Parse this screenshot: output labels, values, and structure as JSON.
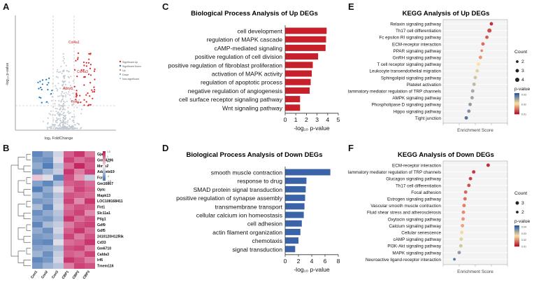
{
  "panel_labels": {
    "a": "A",
    "b": "B",
    "c": "C",
    "d": "D",
    "e": "E",
    "f": "F"
  },
  "chart_data": [
    {
      "id": "volcano",
      "type": "scatter",
      "title": "",
      "xlabel": "log₂ FoldChange",
      "ylabel": "-log₁₀ p-value",
      "legend": [
        "Significant Up",
        "Significant Down",
        "Up",
        "Down",
        "Non-significant"
      ],
      "labeled_genes": [
        "Col4a1",
        "Col4a3",
        "Adcy8",
        "Fcrls"
      ],
      "colors": {
        "up": "#d62728",
        "down": "#1f77b4",
        "ns": "#c0c8d0"
      }
    },
    {
      "id": "heatmap",
      "type": "heatmap",
      "columns": [
        "Con1",
        "Con2",
        "Con3",
        "CBP1",
        "CBP2",
        "CBP3"
      ],
      "rows": [
        "Gja8",
        "Gm14296",
        "Mmfa7",
        "Adamts19",
        "Fcrls",
        "Gm16867",
        "Optc",
        "Mapk13",
        "LOC108168411",
        "Flrt1",
        "Slc11a1",
        "Ptlg1",
        "Gdf9",
        "Gdf5",
        "2410120H12Rik",
        "Cd33",
        "Gm6710",
        "Calda3",
        "Irf6",
        "Tmem116"
      ],
      "values": [
        [
          -1.2,
          -0.9,
          -0.3,
          1.0,
          1.3,
          0.8
        ],
        [
          -1.0,
          -1.1,
          -0.2,
          1.2,
          0.9,
          1.1
        ],
        [
          -0.8,
          -1.3,
          -0.5,
          0.9,
          1.4,
          1.0
        ],
        [
          -1.1,
          -0.7,
          -0.4,
          1.3,
          0.8,
          1.2
        ],
        [
          0.3,
          -0.2,
          -1.2,
          1.1,
          0.6,
          -0.4
        ],
        [
          -0.9,
          -1.2,
          -0.6,
          1.0,
          1.1,
          0.9
        ],
        [
          -1.3,
          -0.8,
          -0.2,
          0.8,
          1.2,
          1.0
        ],
        [
          -0.7,
          -1.0,
          -0.5,
          1.1,
          1.0,
          0.9
        ],
        [
          -1.0,
          -0.9,
          -0.4,
          1.2,
          0.7,
          1.3
        ],
        [
          -0.6,
          -1.2,
          -0.3,
          0.9,
          1.1,
          1.0
        ],
        [
          -1.1,
          -0.8,
          -0.5,
          1.0,
          1.2,
          0.7
        ],
        [
          -0.9,
          -1.0,
          -0.6,
          1.3,
          0.9,
          1.1
        ],
        [
          -1.2,
          -0.6,
          -0.4,
          0.8,
          1.1,
          1.2
        ],
        [
          -0.8,
          -1.1,
          -0.3,
          1.0,
          1.3,
          0.9
        ],
        [
          -1.0,
          -0.9,
          -0.5,
          1.2,
          0.8,
          1.1
        ],
        [
          -1.1,
          -1.2,
          -0.2,
          0.9,
          1.0,
          1.3
        ],
        [
          -0.9,
          -0.8,
          -0.6,
          1.1,
          1.2,
          0.8
        ],
        [
          -0.7,
          -1.1,
          -0.4,
          1.0,
          0.9,
          1.2
        ],
        [
          -1.2,
          -1.0,
          -0.3,
          1.3,
          1.1,
          0.8
        ],
        [
          -1.0,
          -0.7,
          -0.5,
          0.8,
          1.2,
          1.1
        ]
      ],
      "scale_ticks": [
        "1.5",
        "1",
        "0.5",
        "0",
        "-0.5",
        "-1",
        "-1.5"
      ]
    },
    {
      "id": "bp_up",
      "type": "bar",
      "orientation": "horizontal",
      "title": "Biological Process Analysis of Up DEGs",
      "categories": [
        "cell development",
        "regulation of MAPK cascade",
        "cAMP-mediated signaling",
        "positive regulation of cell division",
        "positive regulation of fibroblast proliferation",
        "activation of MAPK activity",
        "regulation of apoptotic process",
        "negative regulation of angiogenesis",
        "cell surface receptor signaling pathway",
        "Wnt signaling pathway"
      ],
      "values": [
        3.9,
        3.85,
        3.8,
        3.1,
        2.6,
        2.5,
        2.4,
        2.3,
        1.4,
        1.4
      ],
      "xlim": [
        0,
        5
      ],
      "ticks": [
        0,
        1,
        2,
        3,
        4,
        5
      ],
      "xlabel": "-log₁₀ p-value",
      "color": "#c8202a"
    },
    {
      "id": "bp_down",
      "type": "bar",
      "orientation": "horizontal",
      "title": "Biological Process Analysis of Down DEGs",
      "categories": [
        "smooth muscle contraction",
        "response to drug",
        "SMAD protein signal transduction",
        "positive regulation of synapse assembly",
        "transmembrane transport",
        "cellular calcium ion homeostasis",
        "cell adhesion",
        "actin filament organization",
        "chemotaxis",
        "signal transduction"
      ],
      "values": [
        6.8,
        3.2,
        3.1,
        3.0,
        2.9,
        2.8,
        2.5,
        2.3,
        2.0,
        1.5
      ],
      "xlim": [
        0,
        8
      ],
      "ticks": [
        0,
        2,
        4,
        6,
        8
      ],
      "xlabel": "-log₁₀ p-value",
      "color": "#3a63a8"
    },
    {
      "id": "kegg_up",
      "type": "scatter",
      "title": "KEGG Analysis of Up DEGs",
      "categories": [
        "Relaxin signaling pathway",
        "Th17 cell differentiation",
        "Fc epsilon RI signaling pathway",
        "ECM-receptor interaction",
        "PPAR signaling pathway",
        "GnRH signaling pathway",
        "T cell receptor signaling pathway",
        "Leukocyte transendothelial migration",
        "Sphingolipid signaling pathway",
        "Platelet activation",
        "Inflammatory mediator regulation of TRP channels",
        "AMPK signaling pathway",
        "Phospholipase D signaling pathway",
        "Hippo signaling pathway",
        "Tight junction"
      ],
      "values": [
        7.5,
        7.2,
        6.8,
        6.2,
        6.0,
        5.8,
        5.5,
        5.3,
        5.0,
        4.8,
        4.6,
        4.5,
        4.2,
        4.0,
        3.6
      ],
      "pvalues": [
        0.005,
        0.01,
        0.012,
        0.015,
        0.02,
        0.022,
        0.025,
        0.028,
        0.03,
        0.032,
        0.035,
        0.036,
        0.038,
        0.04,
        0.045
      ],
      "counts": [
        3,
        4,
        3,
        3,
        2,
        3,
        3,
        3,
        3,
        3,
        3,
        3,
        3,
        3,
        3
      ],
      "xlim": [
        0,
        10
      ],
      "xlabel": "Enrichment Score",
      "legend_count_title": "Count",
      "legend_counts": [
        "2",
        "3",
        "4"
      ],
      "legend_p_title": "p-value",
      "p_ticks": [
        "0.03",
        "0.02",
        "0.01"
      ]
    },
    {
      "id": "kegg_down",
      "type": "scatter",
      "title": "KEGG Analysis of Down DEGs",
      "categories": [
        "ECM-receptor interaction",
        "Inflammatory mediator regulation of TRP channels",
        "Glucagon signaling pathway",
        "Th17 cell differentiation",
        "Focal adhesion",
        "Estrogen signaling pathway",
        "Vascular smooth muscle contraction",
        "Fluid shear stress and atherosclerosis",
        "Oxytocin signaling pathway",
        "Calcium signaling pathway",
        "Cellular senescence",
        "cAMP signaling pathway",
        "PI3K-Akt signaling pathway",
        "MAPK signaling pathway",
        "Neuroactive ligand-receptor interaction"
      ],
      "values": [
        14.0,
        9.5,
        8.5,
        8.0,
        7.0,
        6.8,
        6.5,
        6.3,
        6.2,
        6.0,
        5.8,
        5.6,
        5.5,
        5.0,
        3.5
      ],
      "pvalues": [
        0.004,
        0.006,
        0.008,
        0.01,
        0.014,
        0.016,
        0.018,
        0.02,
        0.022,
        0.024,
        0.026,
        0.028,
        0.03,
        0.038,
        0.045
      ],
      "counts": [
        3,
        3,
        3,
        3,
        3,
        3,
        3,
        3,
        3,
        3,
        3,
        3,
        3,
        3,
        2
      ],
      "xlim": [
        0,
        20
      ],
      "xlabel": "Enrichment Score",
      "legend_count_title": "Count",
      "legend_counts": [
        "3",
        "2"
      ],
      "legend_p_title": "p-value",
      "p_ticks": [
        "0.04",
        "0.03",
        "0.02",
        "0.01"
      ]
    }
  ]
}
